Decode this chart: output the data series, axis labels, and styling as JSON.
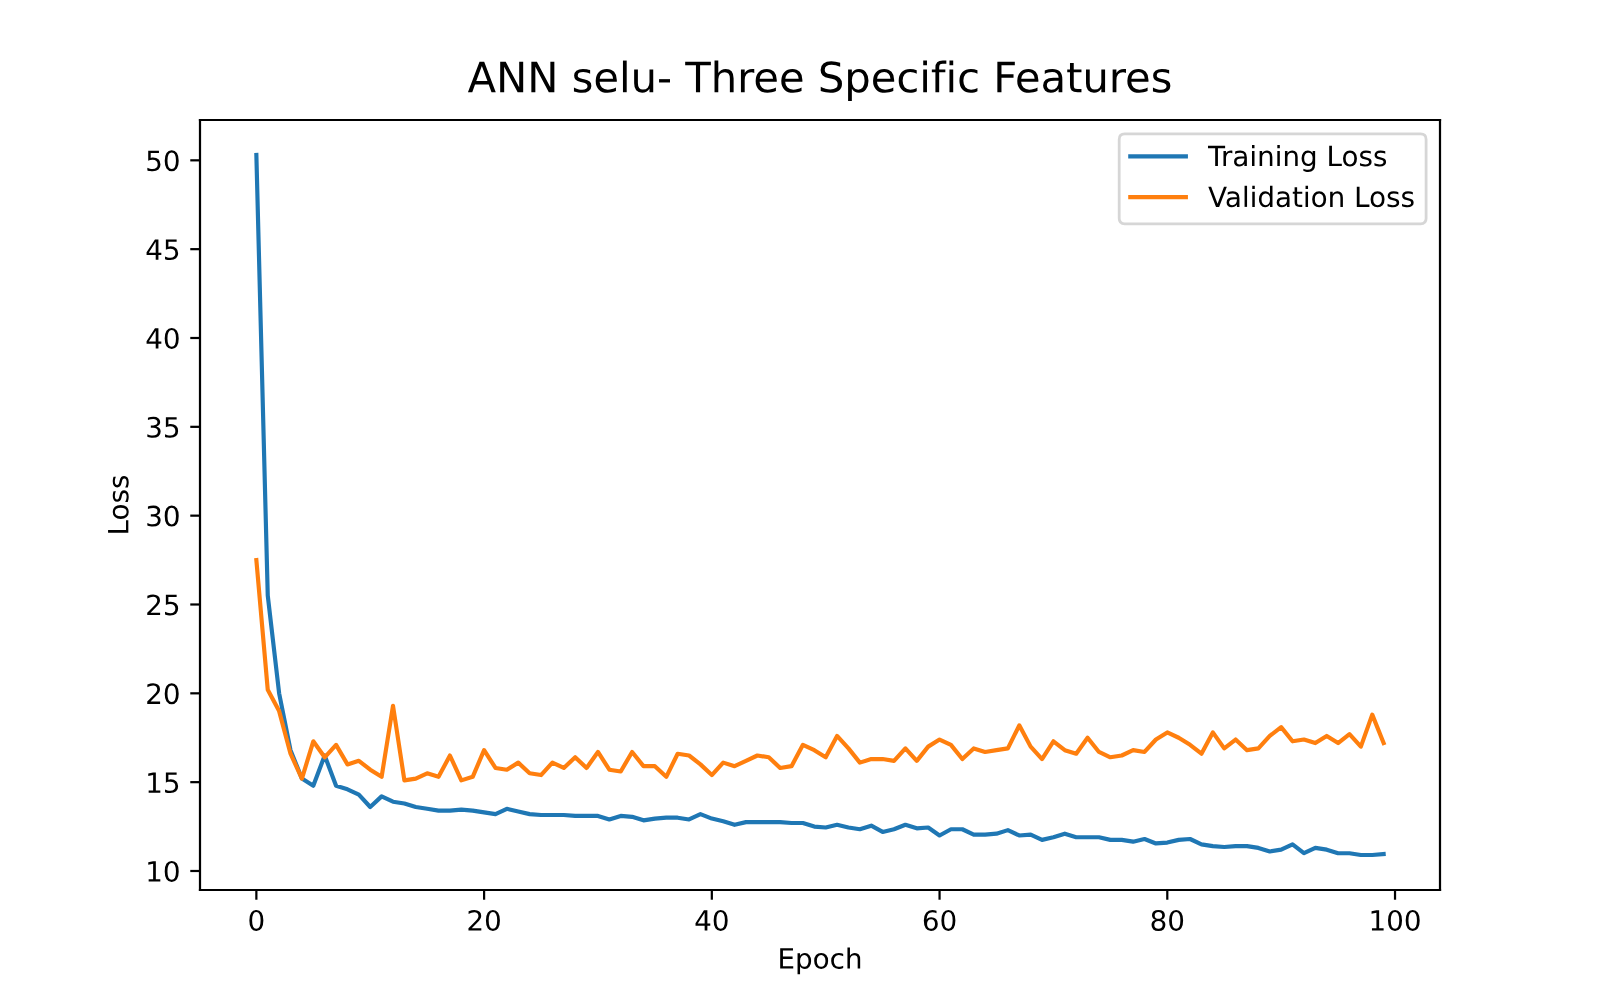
{
  "chart_data": {
    "type": "line",
    "title": "ANN selu- Three Specific Features",
    "xlabel": "Epoch",
    "ylabel": "Loss",
    "x": [
      0,
      1,
      2,
      3,
      4,
      5,
      6,
      7,
      8,
      9,
      10,
      11,
      12,
      13,
      14,
      15,
      16,
      17,
      18,
      19,
      20,
      21,
      22,
      23,
      24,
      25,
      26,
      27,
      28,
      29,
      30,
      31,
      32,
      33,
      34,
      35,
      36,
      37,
      38,
      39,
      40,
      41,
      42,
      43,
      44,
      45,
      46,
      47,
      48,
      49,
      50,
      51,
      52,
      53,
      54,
      55,
      56,
      57,
      58,
      59,
      60,
      61,
      62,
      63,
      64,
      65,
      66,
      67,
      68,
      69,
      70,
      71,
      72,
      73,
      74,
      75,
      76,
      77,
      78,
      79,
      80,
      81,
      82,
      83,
      84,
      85,
      86,
      87,
      88,
      89,
      90,
      91,
      92,
      93,
      94,
      95,
      96,
      97,
      98,
      99
    ],
    "series": [
      {
        "name": "Training Loss",
        "color": "#1f77b4",
        "values": [
          50.3,
          25.5,
          20,
          16.8,
          15.2,
          14.8,
          16.5,
          14.8,
          14.6,
          14.3,
          13.6,
          14.2,
          13.9,
          13.8,
          13.6,
          13.5,
          13.4,
          13.4,
          13.45,
          13.4,
          13.3,
          13.2,
          13.5,
          13.35,
          13.2,
          13.15,
          13.15,
          13.15,
          13.1,
          13.1,
          13.1,
          12.9,
          13.1,
          13.05,
          12.85,
          12.95,
          13.0,
          13.0,
          12.9,
          13.2,
          12.95,
          12.8,
          12.6,
          12.75,
          12.75,
          12.75,
          12.75,
          12.7,
          12.7,
          12.5,
          12.45,
          12.6,
          12.45,
          12.35,
          12.55,
          12.2,
          12.35,
          12.6,
          12.4,
          12.45,
          12.0,
          12.35,
          12.35,
          12.05,
          12.05,
          12.1,
          12.3,
          12.0,
          12.05,
          11.75,
          11.9,
          12.1,
          11.9,
          11.9,
          11.9,
          11.75,
          11.75,
          11.65,
          11.8,
          11.55,
          11.6,
          11.75,
          11.8,
          11.5,
          11.4,
          11.35,
          11.4,
          11.4,
          11.3,
          11.1,
          11.2,
          11.5,
          11.0,
          11.3,
          11.2,
          11.0,
          11.0,
          10.9,
          10.9,
          10.95
        ]
      },
      {
        "name": "Validation Loss",
        "color": "#ff7f0e",
        "values": [
          27.5,
          20.2,
          19,
          16.6,
          15.2,
          17.3,
          16.4,
          17.1,
          16.0,
          16.2,
          15.7,
          15.3,
          19.3,
          15.1,
          15.2,
          15.5,
          15.3,
          16.5,
          15.1,
          15.3,
          16.8,
          15.8,
          15.7,
          16.1,
          15.5,
          15.4,
          16.1,
          15.8,
          16.4,
          15.8,
          16.7,
          15.7,
          15.6,
          16.7,
          15.9,
          15.9,
          15.3,
          16.6,
          16.5,
          16.0,
          15.4,
          16.1,
          15.9,
          16.2,
          16.5,
          16.4,
          15.8,
          15.9,
          17.1,
          16.8,
          16.4,
          17.6,
          16.9,
          16.1,
          16.3,
          16.3,
          16.2,
          16.9,
          16.2,
          17.0,
          17.4,
          17.1,
          16.3,
          16.9,
          16.7,
          16.8,
          16.9,
          18.2,
          17.0,
          16.3,
          17.3,
          16.8,
          16.6,
          17.5,
          16.7,
          16.4,
          16.5,
          16.8,
          16.7,
          17.4,
          17.8,
          17.5,
          17.1,
          16.6,
          17.8,
          16.9,
          17.4,
          16.8,
          16.9,
          17.6,
          18.1,
          17.3,
          17.4,
          17.2,
          17.6,
          17.2,
          17.7,
          17.0,
          18.8,
          17.2
        ]
      }
    ],
    "xlim": [
      -4.95,
      103.95
    ],
    "ylim": [
      8.93,
      52.27
    ],
    "xticks": [
      0,
      20,
      40,
      60,
      80,
      100
    ],
    "yticks": [
      10,
      15,
      20,
      25,
      30,
      35,
      40,
      45,
      50
    ],
    "legend": "top right",
    "grid": false,
    "marker": "none",
    "line_style": "solid"
  }
}
